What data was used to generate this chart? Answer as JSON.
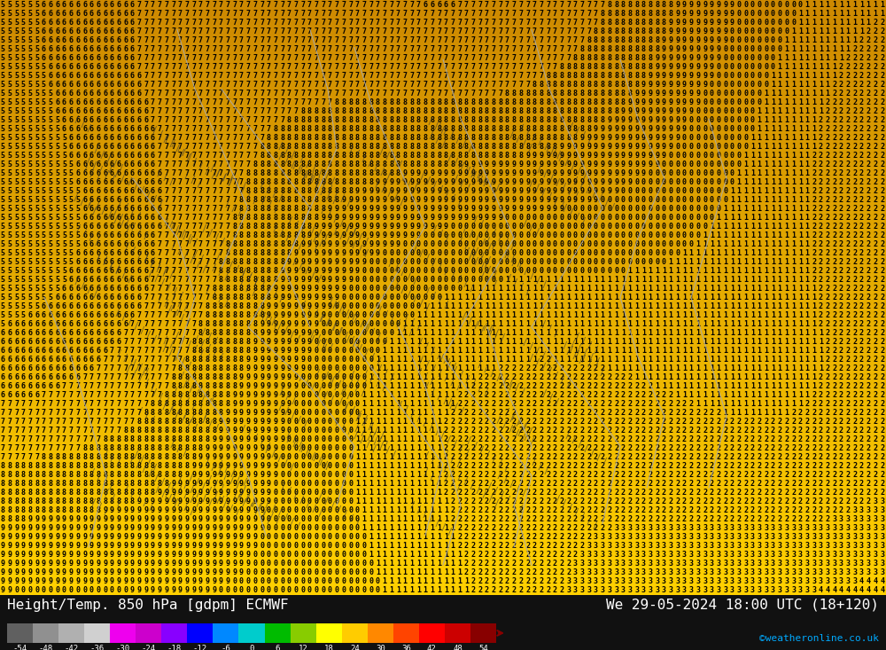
{
  "title_left": "Height/Temp. 850 hPa [gdpm] ECMWF",
  "title_right": "We 29-05-2024 18:00 UTC (18+120)",
  "watermark": "©weatheronline.co.uk",
  "colorbar_values": [
    -54,
    -48,
    -42,
    -36,
    -30,
    -24,
    -18,
    -12,
    -6,
    0,
    6,
    12,
    18,
    24,
    30,
    36,
    42,
    48,
    54
  ],
  "colorbar_colors": [
    "#606060",
    "#909090",
    "#b0b0b0",
    "#d0d0d0",
    "#ee00ee",
    "#cc00cc",
    "#8800ff",
    "#0000ff",
    "#0088ff",
    "#00cccc",
    "#00bb00",
    "#88cc00",
    "#ffff00",
    "#ffcc00",
    "#ff8800",
    "#ff4400",
    "#ff0000",
    "#cc0000",
    "#880000"
  ],
  "bg_top_color": "#ffd700",
  "bg_bottom_color": "#cc8800",
  "bottom_bar_color": "#111111",
  "digit_color": "#000000",
  "contour_color": "#aaaaaa",
  "fig_width": 10.0,
  "fig_height": 7.33,
  "title_fontsize": 11.5,
  "watermark_color": "#00aaff"
}
